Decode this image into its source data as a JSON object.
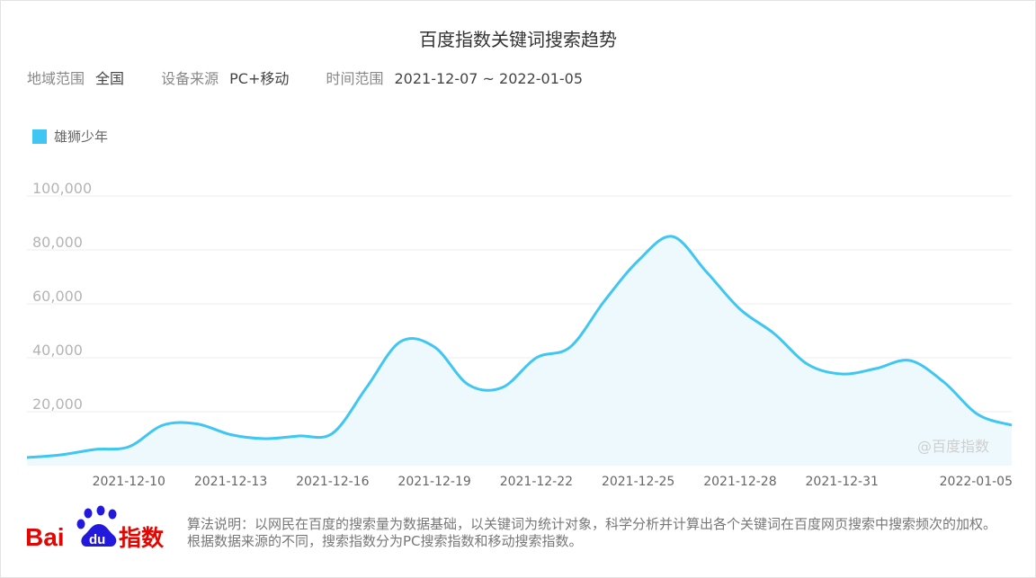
{
  "title": "百度指数关键词搜索趋势",
  "filters": {
    "region_label": "地域范围",
    "region_value": "全国",
    "device_label": "设备来源",
    "device_value": "PC+移动",
    "time_label": "时间范围",
    "time_value": "2021-12-07 ~ 2022-01-05"
  },
  "watermark": "@百度指数",
  "logo": {
    "text_bai": "Bai",
    "text_du": "du",
    "text_index": "指数"
  },
  "description": "算法说明：以网民在百度的搜索量为数据基础，以关键词为统计对象，科学分析并计算出各个关键词在百度网页搜索中搜索频次的加权。根据数据来源的不同，搜索指数分为PC搜索指数和移动搜索指数。",
  "colors": {
    "line": "#3fc6f2",
    "fill": "#eef9fd",
    "logo_red": "#e10601",
    "logo_blue": "#2319dc"
  },
  "chart_data": {
    "type": "area",
    "title": "",
    "xlabel": "",
    "ylabel": "",
    "ylim": [
      0,
      100000
    ],
    "yticks": [
      20000,
      40000,
      60000,
      80000,
      100000
    ],
    "ytick_labels": [
      "20,000",
      "40,000",
      "60,000",
      "80,000",
      "100,000"
    ],
    "x": [
      "2021-12-07",
      "2021-12-08",
      "2021-12-09",
      "2021-12-10",
      "2021-12-11",
      "2021-12-12",
      "2021-12-13",
      "2021-12-14",
      "2021-12-15",
      "2021-12-16",
      "2021-12-17",
      "2021-12-18",
      "2021-12-19",
      "2021-12-20",
      "2021-12-21",
      "2021-12-22",
      "2021-12-23",
      "2021-12-24",
      "2021-12-25",
      "2021-12-26",
      "2021-12-27",
      "2021-12-28",
      "2021-12-29",
      "2021-12-30",
      "2021-12-31",
      "2022-01-01",
      "2022-01-02",
      "2022-01-03",
      "2022-01-04",
      "2022-01-05"
    ],
    "xtick_labels": [
      "2021-12-10",
      "2021-12-13",
      "2021-12-16",
      "2021-12-19",
      "2021-12-22",
      "2021-12-25",
      "2021-12-28",
      "2021-12-31",
      "2022-01-05"
    ],
    "legend_position": "top-left",
    "grid": true,
    "series": [
      {
        "name": "雄狮少年",
        "values": [
          3000,
          4000,
          6000,
          7000,
          15000,
          15500,
          11500,
          10000,
          11000,
          12000,
          29000,
          46000,
          44000,
          30000,
          29000,
          40000,
          44000,
          61000,
          76000,
          85000,
          72000,
          58000,
          49000,
          37500,
          34000,
          36000,
          39000,
          31000,
          19000,
          15000
        ]
      }
    ]
  }
}
